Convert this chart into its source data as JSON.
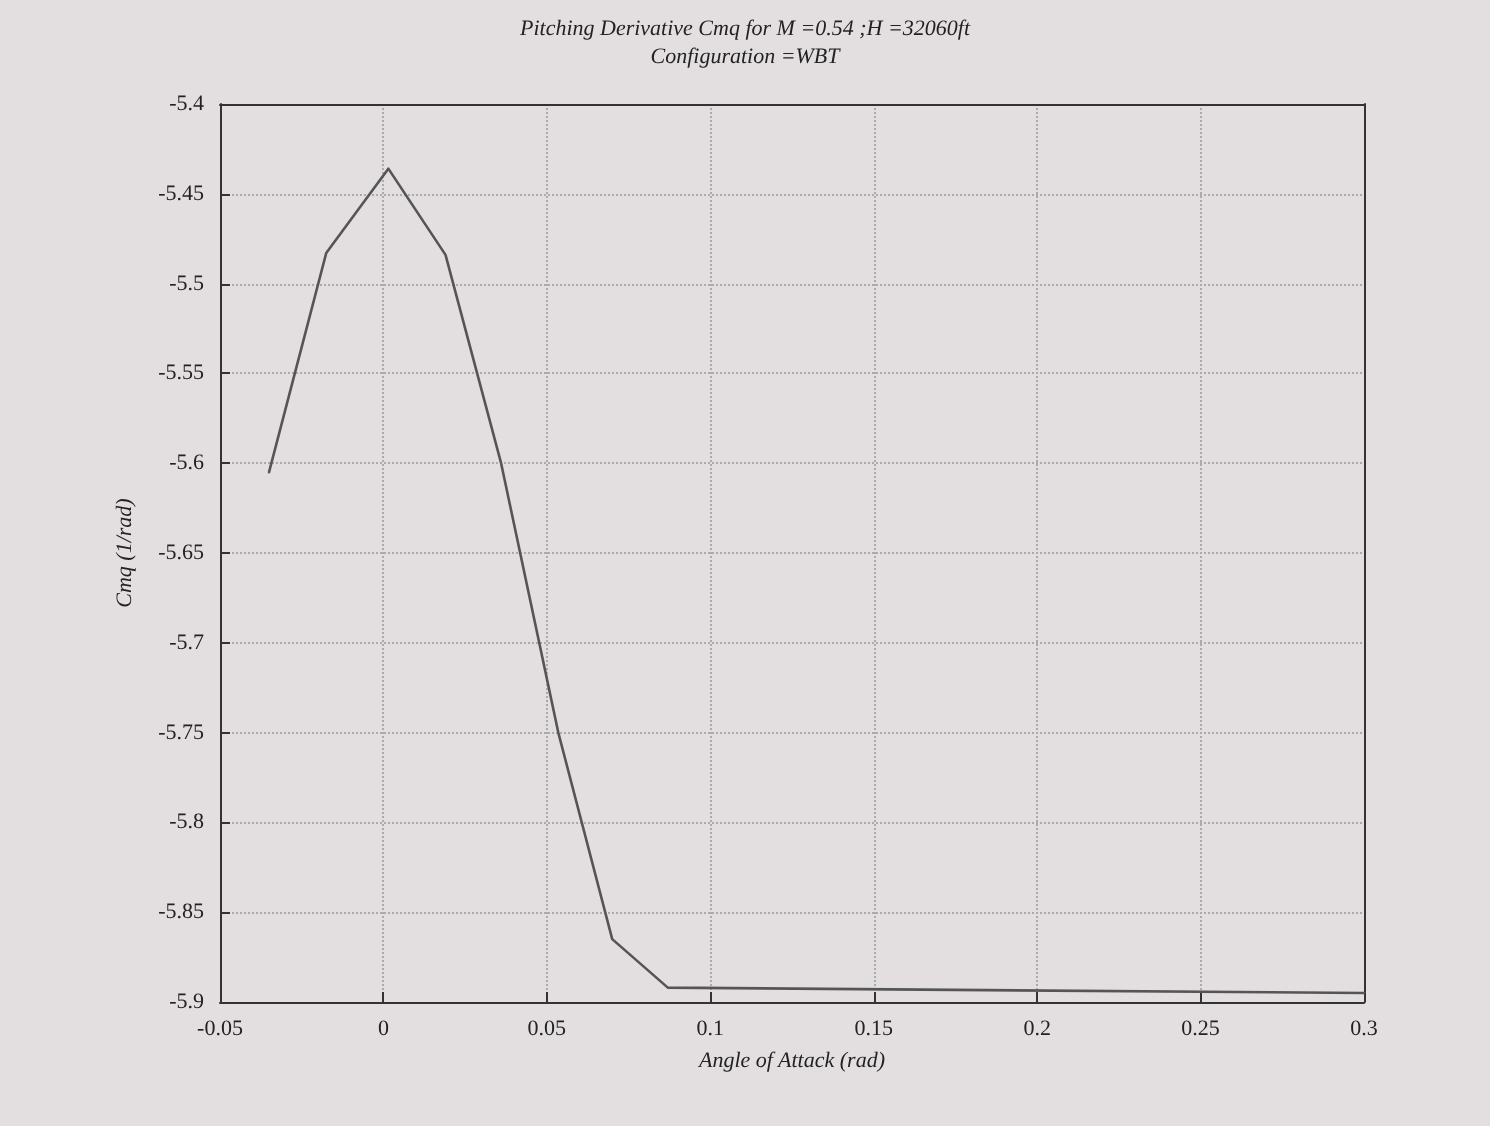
{
  "chart_data": {
    "type": "line",
    "title": "Pitching Derivative Cmq for M =0.54 ;H =32060ft",
    "subtitle": "Configuration =WBT",
    "xlabel": "Angle of Attack (rad)",
    "ylabel": "Cmq (1/rad)",
    "x": [
      -0.035,
      -0.0175,
      0.0015,
      0.019,
      0.036,
      0.0535,
      0.07,
      0.087,
      0.3
    ],
    "series": [
      {
        "color": "#555555",
        "values": [
          -5.605,
          -5.483,
          -5.436,
          -5.484,
          -5.6,
          -5.75,
          -5.865,
          -5.892,
          -5.895
        ]
      }
    ],
    "xlim": [
      -0.05,
      0.3
    ],
    "xticks": [
      -0.05,
      0,
      0.05,
      0.1,
      0.15,
      0.2,
      0.25,
      0.3
    ],
    "ylim": [
      -5.9,
      -5.4
    ],
    "yticks": [
      -5.9,
      -5.85,
      -5.8,
      -5.75,
      -5.7,
      -5.65,
      -5.6,
      -5.55,
      -5.5,
      -5.45,
      -5.4
    ],
    "grid": true,
    "marker": "none",
    "line_style": "solid"
  }
}
